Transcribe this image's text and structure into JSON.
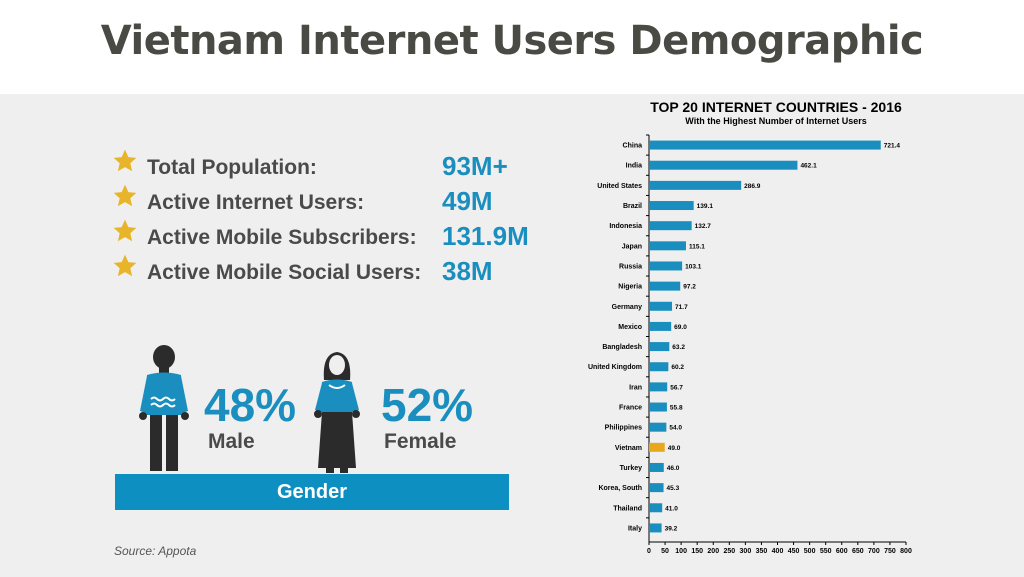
{
  "header": {
    "title": "Vietnam Internet Users Demographic"
  },
  "stats": [
    {
      "label": "Total Population:",
      "value": "93M+"
    },
    {
      "label": "Active Internet Users:",
      "value": "49M"
    },
    {
      "label": "Active Mobile Subscribers:",
      "value": "131.9M"
    },
    {
      "label": "Active Mobile Social Users:",
      "value": "38M"
    }
  ],
  "gender": {
    "male_pct": "48%",
    "male_label": "Male",
    "female_pct": "52%",
    "female_label": "Female",
    "bar_label": "Gender"
  },
  "source": "Source: Appota",
  "colors": {
    "accent": "#1a8fbf",
    "bar": "#1a8fbf",
    "highlight": "#e8a81e",
    "star": "#e8b52a"
  },
  "chart_data": {
    "type": "bar",
    "orientation": "horizontal",
    "title": "TOP 20 INTERNET COUNTRIES - 2016",
    "subtitle": "With the Highest Number of Internet Users",
    "categories": [
      "China",
      "India",
      "United States",
      "Brazil",
      "Indonesia",
      "Japan",
      "Russia",
      "Nigeria",
      "Germany",
      "Mexico",
      "Bangladesh",
      "United Kingdom",
      "Iran",
      "France",
      "Philippines",
      "Vietnam",
      "Turkey",
      "Korea, South",
      "Thailand",
      "Italy"
    ],
    "values": [
      721.4,
      462.1,
      286.9,
      139.1,
      132.7,
      115.1,
      103.1,
      97.2,
      71.7,
      69.0,
      63.2,
      60.2,
      56.7,
      55.8,
      54.0,
      49.0,
      46.0,
      45.3,
      41.0,
      39.2
    ],
    "value_labels": [
      "721.4",
      "462.1",
      "286.9",
      "139.1",
      "132.7",
      "115.1",
      "103.1",
      "97.2",
      "71.7",
      "69.0",
      "63.2",
      "60.2",
      "56.7",
      "55.8",
      "54.0",
      "49.0",
      "46.0",
      "45.3",
      "41.0",
      "39.2"
    ],
    "highlight": "Vietnam",
    "xlim": [
      0,
      800
    ],
    "xticks": [
      "0",
      "50",
      "100",
      "150",
      "200",
      "250",
      "300",
      "350",
      "400",
      "450",
      "500",
      "550",
      "600",
      "650",
      "700",
      "750",
      "800"
    ]
  }
}
